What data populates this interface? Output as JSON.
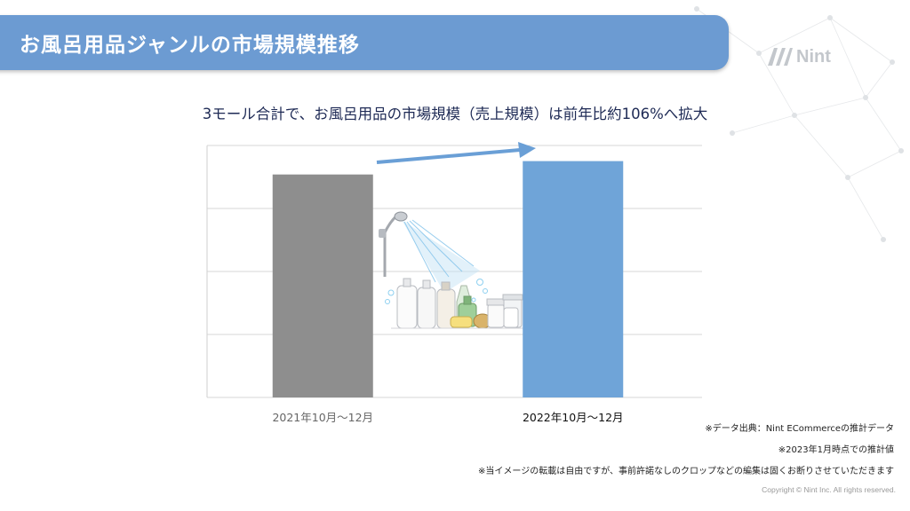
{
  "header": {
    "title": "お風呂用品ジャンルの市場規模推移"
  },
  "logo": {
    "text": "Nint"
  },
  "headline": "3モール合計で、お風呂用品の市場規模（売上規模）は前年比約106%へ拡大",
  "chart_data": {
    "type": "bar",
    "categories": [
      "2021年10月～12月",
      "2022年10月～12月"
    ],
    "values": [
      100,
      106
    ],
    "colors": [
      "#8e8e8e",
      "#6fa4d8"
    ],
    "ylim": [
      0,
      113
    ],
    "grid": true,
    "xlabel": "",
    "ylabel": ""
  },
  "notes": [
    "※データ出典：Nint ECommerceの推計データ",
    "※2023年1月時点での推計値",
    "※当イメージの転載は自由ですが、事前許諾なしのクロップなどの編集は固くお断りさせていただきます"
  ],
  "copyright": "Copyright © Nint Inc. All rights reserved.",
  "icons": {
    "logo": "nint-logo-icon",
    "arrow": "growth-arrow-icon",
    "illustration": "bath-products-illustration",
    "background": "network-pattern-icon"
  }
}
